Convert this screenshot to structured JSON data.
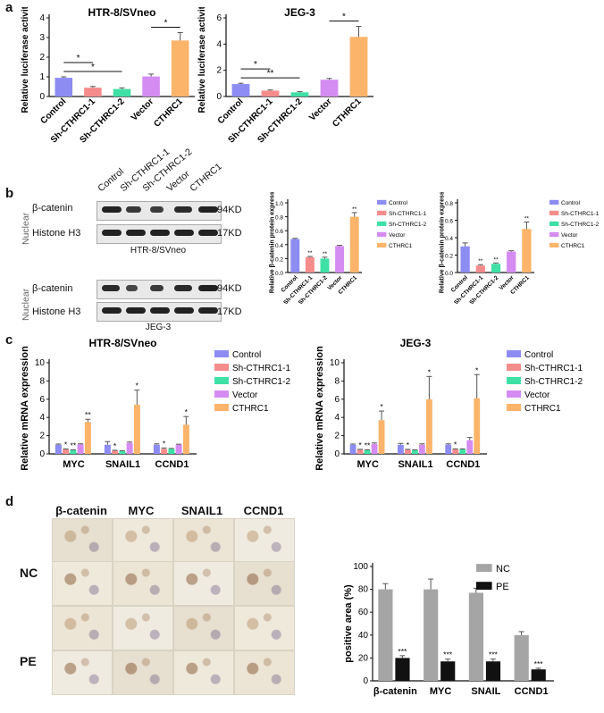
{
  "panels": {
    "a": "a",
    "b": "b",
    "c": "c",
    "d": "d"
  },
  "colors": {
    "control": "#8c8cf2",
    "sh1": "#f58c8c",
    "sh2": "#3fe0a6",
    "vector": "#d58cf2",
    "cthrc1": "#fbb46a",
    "nc": "#a5a5a5",
    "pe": "#111111"
  },
  "western": {
    "lanes": [
      "Control",
      "Sh-CTHRC1-1",
      "Sh-CTHRC1-2",
      "Vector",
      "CTHRC1"
    ],
    "side_label": "Nuclear",
    "rows": [
      [
        "β-catenin",
        "Histone H3"
      ],
      [
        "β-catenin",
        "Histone H3"
      ]
    ],
    "mw": [
      "94KD",
      "17KD",
      "94KD",
      "17KD"
    ],
    "cells": [
      "HTR-8/SVneo",
      "JEG-3"
    ]
  },
  "ihc": {
    "columns": [
      "β-catenin",
      "MYC",
      "SNAIL1",
      "CCND1"
    ],
    "rows": [
      "NC",
      "PE"
    ]
  },
  "chart_data": [
    {
      "id": "a_htr",
      "type": "bar",
      "title": "HTR-8/SVneo",
      "ylabel": "Relative luciferase activity",
      "categories": [
        "Control",
        "Sh-CTHRC1-1",
        "Sh-CTHRC1-2",
        "Vector",
        "CTHRC1"
      ],
      "values": [
        0.95,
        0.45,
        0.38,
        1.02,
        2.85
      ],
      "errors": [
        0.05,
        0.06,
        0.06,
        0.12,
        0.4
      ],
      "ylim": [
        0,
        4
      ],
      "yticks": [
        "0",
        "1",
        "2",
        "3",
        "4"
      ],
      "brackets": [
        [
          "0",
          "1",
          "*"
        ],
        [
          "0",
          "2",
          "*"
        ],
        [
          "3",
          "4",
          "*"
        ]
      ]
    },
    {
      "id": "a_jeg",
      "type": "bar",
      "title": "JEG-3",
      "ylabel": "Relative luciferase activity",
      "categories": [
        "Control",
        "Sh-CTHRC1-1",
        "Sh-CTHRC1-2",
        "Vector",
        "CTHRC1"
      ],
      "values": [
        0.95,
        0.45,
        0.32,
        1.28,
        4.55
      ],
      "errors": [
        0.06,
        0.05,
        0.05,
        0.1,
        0.8
      ],
      "ylim": [
        0,
        6
      ],
      "yticks": [
        "0",
        "2",
        "4",
        "6"
      ],
      "brackets": [
        [
          "0",
          "1",
          "*"
        ],
        [
          "0",
          "2",
          "**"
        ],
        [
          "3",
          "4",
          "*"
        ]
      ]
    },
    {
      "id": "b_htr",
      "type": "bar",
      "ylabel": "Relative β-catenin protein expression",
      "categories": [
        "Control",
        "Sh-CTHRC1-1",
        "Sh-CTHRC1-2",
        "Vector",
        "CTHRC1"
      ],
      "values": [
        0.48,
        0.22,
        0.2,
        0.38,
        0.8
      ],
      "errors": [
        0.01,
        0.01,
        0.02,
        0.01,
        0.06
      ],
      "ylim": [
        0,
        1
      ],
      "yticks": [
        "0.0",
        "0.2",
        "0.4",
        "0.6",
        "0.8",
        "1.0"
      ],
      "stars": [
        "",
        "**",
        "**",
        "",
        "**"
      ],
      "legend": [
        "Control",
        "Sh-CTHRC1-1",
        "Sh-CTHRC1-2",
        "Vector",
        "CTHRC1"
      ]
    },
    {
      "id": "b_jeg",
      "type": "bar",
      "ylabel": "Relative β-catenin protein expression",
      "categories": [
        "Control",
        "Sh-CTHRC1-1",
        "Sh-CTHRC1-2",
        "Vector",
        "CTHRC1"
      ],
      "values": [
        0.3,
        0.08,
        0.1,
        0.24,
        0.5
      ],
      "errors": [
        0.04,
        0.01,
        0.01,
        0.01,
        0.08
      ],
      "ylim": [
        0,
        0.8
      ],
      "yticks": [
        "0.0",
        "0.2",
        "0.4",
        "0.6",
        "0.8"
      ],
      "stars": [
        "",
        "**",
        "**",
        "",
        "**"
      ],
      "legend": [
        "Control",
        "Sh-CTHRC1-1",
        "Sh-CTHRC1-2",
        "Vector",
        "CTHRC1"
      ]
    },
    {
      "id": "c_htr",
      "type": "bar",
      "title": "HTR-8/SVneo",
      "ylabel": "Relative mRNA expression",
      "categories": [
        "MYC",
        "SNAIL1",
        "CCND1"
      ],
      "series": [
        {
          "name": "Control",
          "values": [
            1.0,
            1.0,
            1.0
          ],
          "errors": [
            0.08,
            0.35,
            0.1
          ],
          "stars": [
            "",
            "",
            ""
          ]
        },
        {
          "name": "Sh-CTHRC1-1",
          "values": [
            0.5,
            0.35,
            0.55
          ],
          "errors": [
            0.05,
            0.05,
            0.1
          ],
          "stars": [
            "*",
            "*",
            "*"
          ]
        },
        {
          "name": "Sh-CTHRC1-2",
          "values": [
            0.4,
            0.3,
            0.55
          ],
          "errors": [
            0.05,
            0.05,
            0.05
          ],
          "stars": [
            "**",
            "",
            ""
          ]
        },
        {
          "name": "Vector",
          "values": [
            1.05,
            1.2,
            1.0
          ],
          "errors": [
            0.06,
            0.1,
            0.06
          ],
          "stars": [
            "",
            "",
            ""
          ]
        },
        {
          "name": "CTHRC1",
          "values": [
            3.5,
            5.4,
            3.2
          ],
          "errors": [
            0.3,
            1.6,
            0.9
          ],
          "stars": [
            "**",
            "*",
            "*"
          ]
        }
      ],
      "ylim": [
        0,
        10
      ],
      "yticks": [
        "0",
        "2",
        "4",
        "6",
        "8",
        "10"
      ],
      "legend": [
        "Control",
        "Sh-CTHRC1-1",
        "Sh-CTHRC1-2",
        "Vector",
        "CTHRC1"
      ]
    },
    {
      "id": "c_jeg",
      "type": "bar",
      "title": "JEG-3",
      "ylabel": "Relative mRNA expression",
      "categories": [
        "MYC",
        "SNAIL1",
        "CCND1"
      ],
      "series": [
        {
          "name": "Control",
          "values": [
            1.0,
            1.0,
            1.0
          ],
          "errors": [
            0.08,
            0.15,
            0.1
          ],
          "stars": [
            "",
            "",
            ""
          ]
        },
        {
          "name": "Sh-CTHRC1-1",
          "values": [
            0.45,
            0.45,
            0.5
          ],
          "errors": [
            0.05,
            0.05,
            0.05
          ],
          "stars": [
            "*",
            "*",
            "*"
          ]
        },
        {
          "name": "Sh-CTHRC1-2",
          "values": [
            0.4,
            0.4,
            0.5
          ],
          "errors": [
            0.05,
            0.05,
            0.05
          ],
          "stars": [
            "**",
            "",
            ""
          ]
        },
        {
          "name": "Vector",
          "values": [
            1.1,
            1.0,
            1.5
          ],
          "errors": [
            0.1,
            0.1,
            0.3
          ],
          "stars": [
            "",
            "",
            ""
          ]
        },
        {
          "name": "CTHRC1",
          "values": [
            3.7,
            6.0,
            6.1
          ],
          "errors": [
            1.0,
            2.5,
            2.6
          ],
          "stars": [
            "*",
            "*",
            "*"
          ]
        }
      ],
      "ylim": [
        0,
        10
      ],
      "yticks": [
        "0",
        "2",
        "4",
        "6",
        "8",
        "10"
      ],
      "legend": [
        "Control",
        "Sh-CTHRC1-1",
        "Sh-CTHRC1-2",
        "Vector",
        "CTHRC1"
      ]
    },
    {
      "id": "d_pos",
      "type": "bar",
      "ylabel": "positive area (%)",
      "categories": [
        "β-catenin",
        "MYC",
        "SNAIL",
        "CCND1"
      ],
      "series": [
        {
          "name": "NC",
          "values": [
            80,
            80,
            77,
            40
          ],
          "errors": [
            5,
            9,
            4,
            3
          ],
          "stars": [
            "",
            "",
            "",
            ""
          ]
        },
        {
          "name": "PE",
          "values": [
            20,
            17,
            17,
            10
          ],
          "errors": [
            2,
            2,
            2,
            1
          ],
          "stars": [
            "***",
            "***",
            "***",
            "***"
          ]
        }
      ],
      "ylim": [
        0,
        100
      ],
      "yticks": [
        "0",
        "20",
        "40",
        "60",
        "80",
        "100"
      ],
      "legend": [
        "NC",
        "PE"
      ]
    }
  ]
}
